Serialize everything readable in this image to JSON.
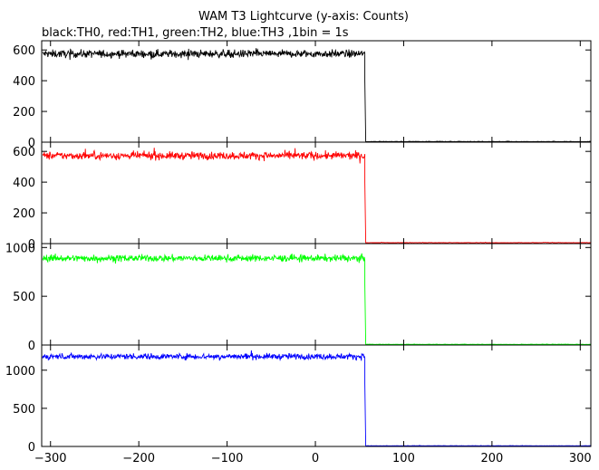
{
  "chart_data": {
    "type": "line",
    "title": "WAM T3 Lightcurve (y-axis: Counts)",
    "subtitle": "black:TH0, red:TH1, green:TH2, blue:TH3 ,1bin = 1s",
    "xlabel": "",
    "xlim": [
      -310,
      312
    ],
    "x_ticks": [
      "−300",
      "−200",
      "−100",
      "0",
      "100",
      "200",
      "300"
    ],
    "x_tick_values": [
      -300,
      -200,
      -100,
      0,
      100,
      200,
      300
    ],
    "cutoff_x": 56,
    "grid": false,
    "panels": [
      {
        "series": "TH0",
        "color": "#000000",
        "ylabel": "",
        "ylim": [
          0,
          660
        ],
        "y_ticks": [
          "0",
          "200",
          "400",
          "600"
        ],
        "y_tick_values": [
          0,
          200,
          400,
          600
        ],
        "before_level": 575,
        "noise": 18,
        "after_level": 3
      },
      {
        "series": "TH1",
        "color": "#ff0000",
        "ylabel": "",
        "ylim": [
          0,
          660
        ],
        "y_ticks": [
          "0",
          "200",
          "400",
          "600"
        ],
        "y_tick_values": [
          0,
          200,
          400,
          600
        ],
        "before_level": 572,
        "noise": 18,
        "after_level": 5
      },
      {
        "series": "TH2",
        "color": "#00ff00",
        "ylabel": "",
        "ylim": [
          0,
          1040
        ],
        "y_ticks": [
          "0",
          "500",
          "1000"
        ],
        "y_tick_values": [
          0,
          500,
          1000
        ],
        "before_level": 890,
        "noise": 25,
        "after_level": 6
      },
      {
        "series": "TH3",
        "color": "#0000ff",
        "ylabel": "",
        "ylim": [
          0,
          1330
        ],
        "y_ticks": [
          "0",
          "500",
          "1000"
        ],
        "y_tick_values": [
          0,
          500,
          1000
        ],
        "before_level": 1180,
        "noise": 28,
        "after_level": 8
      }
    ]
  }
}
